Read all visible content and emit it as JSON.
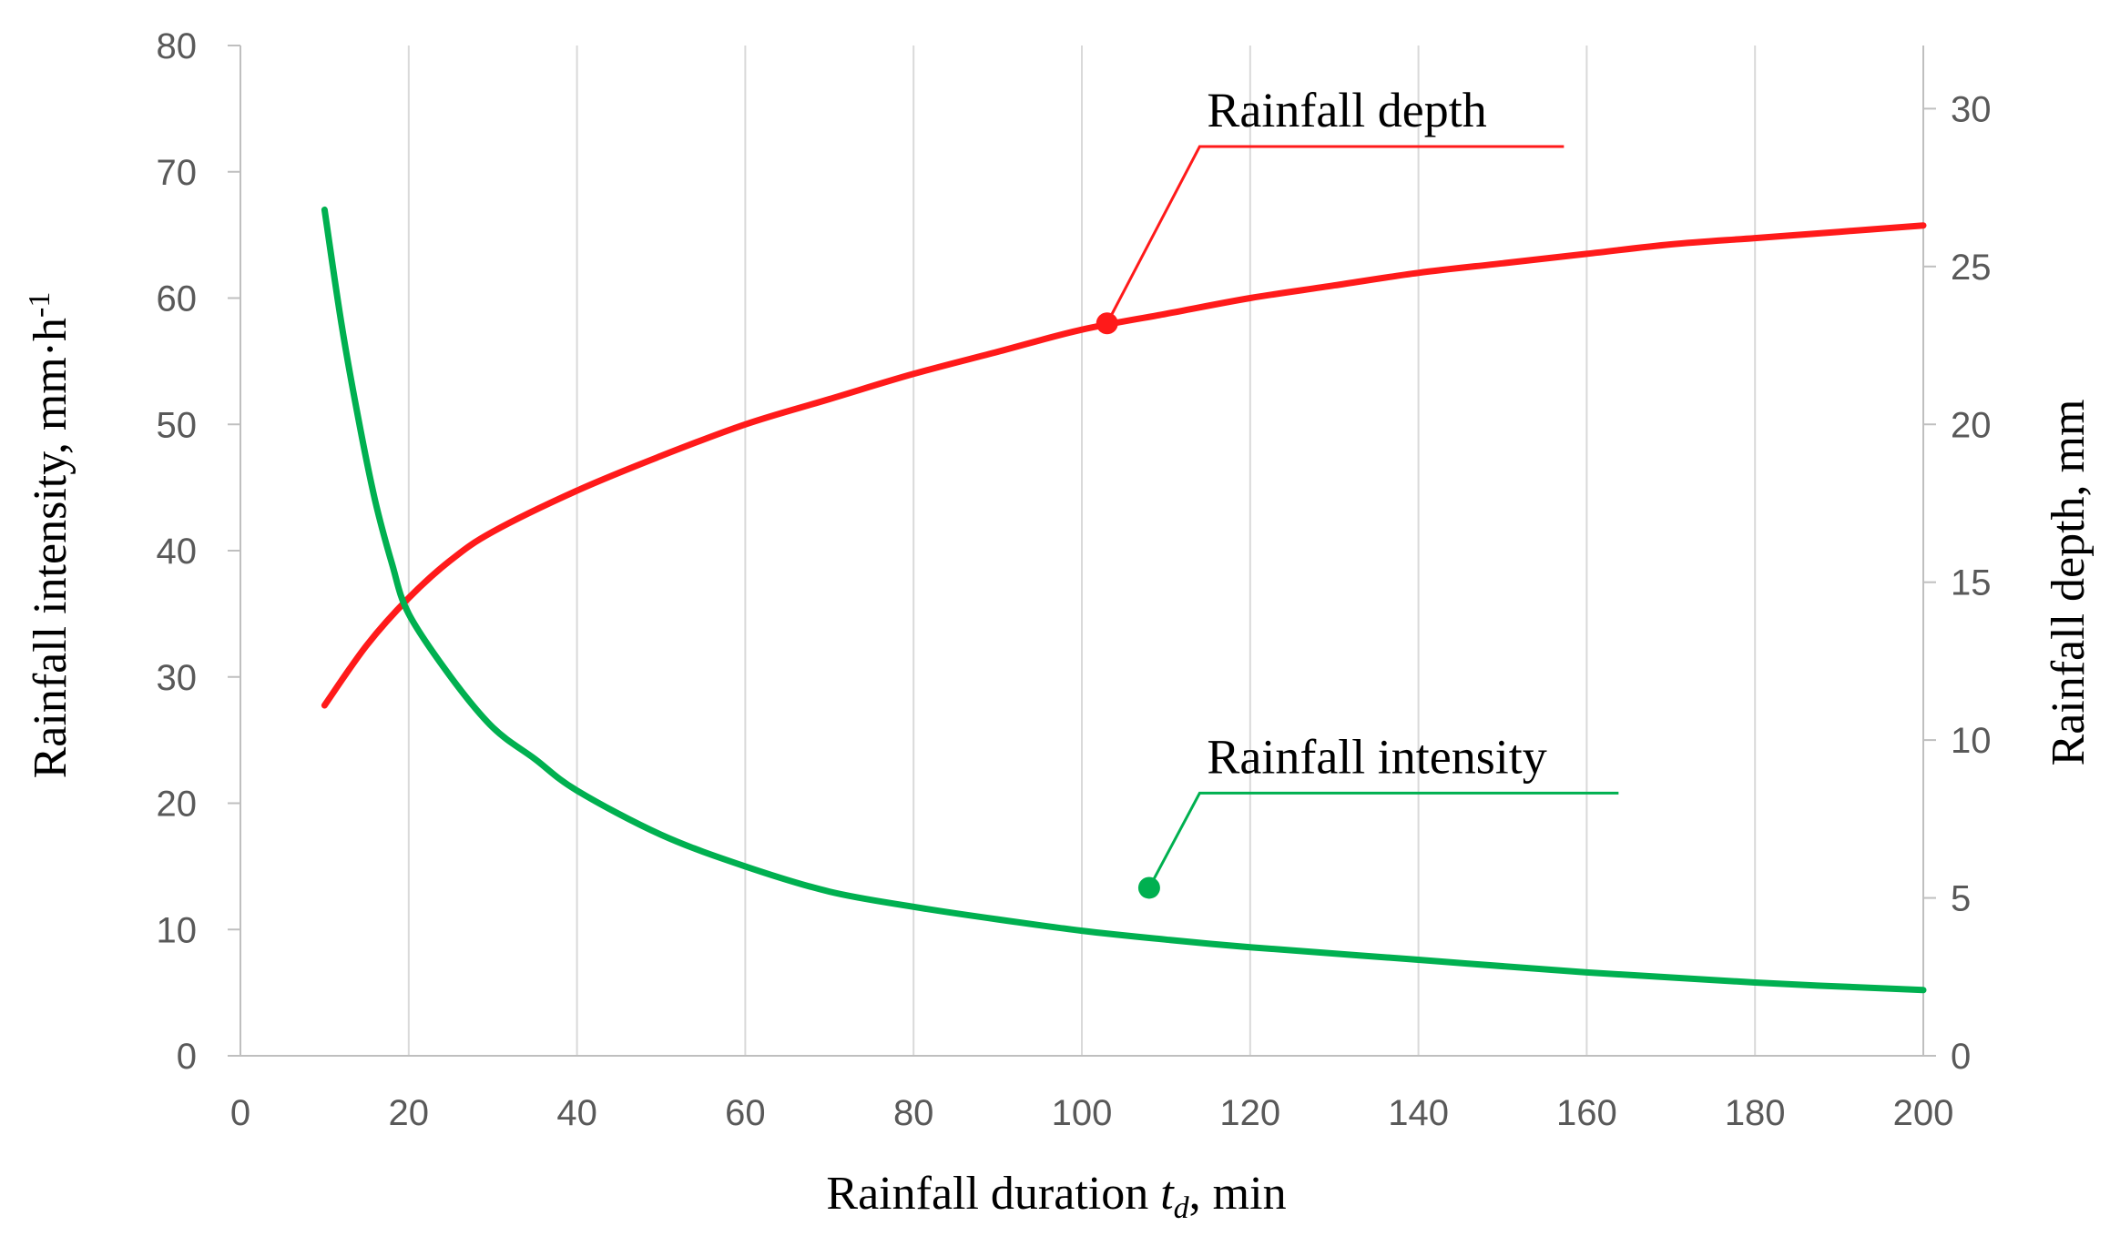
{
  "chart_data": {
    "type": "line",
    "x_axis": {
      "title_parts": [
        "Rainfall duration ",
        "t",
        "d",
        ", min"
      ],
      "range": [
        0,
        200
      ],
      "ticks": [
        "0",
        "20",
        "40",
        "60",
        "80",
        "100",
        "120",
        "140",
        "160",
        "180",
        "200"
      ],
      "grid": true
    },
    "y_left": {
      "title_parts": [
        "Rainfall intensity, mm·h",
        "-1"
      ],
      "range": [
        0,
        80
      ],
      "ticks": [
        "0",
        "10",
        "20",
        "30",
        "40",
        "50",
        "60",
        "70",
        "80"
      ]
    },
    "y_right": {
      "title": "Rainfall depth, mm",
      "range": [
        0,
        32
      ],
      "ticks": [
        "0",
        "5",
        "10",
        "15",
        "20",
        "25",
        "30"
      ]
    },
    "series": [
      {
        "name": "Rainfall depth",
        "axis": "right",
        "color": "#ff1a1a",
        "x": [
          10,
          15,
          20,
          25,
          30,
          40,
          50,
          60,
          70,
          80,
          90,
          100,
          110,
          120,
          130,
          140,
          150,
          160,
          170,
          180,
          190,
          200
        ],
        "y": [
          11.1,
          13.0,
          14.5,
          15.7,
          16.6,
          17.9,
          19.0,
          20.0,
          20.8,
          21.6,
          22.3,
          23.0,
          23.5,
          24.0,
          24.4,
          24.8,
          25.1,
          25.4,
          25.7,
          25.9,
          26.1,
          26.3
        ],
        "marker": {
          "x": 103,
          "y": 23.2
        },
        "label_anchor": {
          "x": 114,
          "y": 28.8
        }
      },
      {
        "name": "Rainfall intensity",
        "axis": "left",
        "color": "#00b050",
        "x": [
          10,
          12,
          14,
          16,
          18,
          20,
          25,
          30,
          35,
          40,
          50,
          60,
          70,
          80,
          90,
          100,
          110,
          120,
          140,
          160,
          180,
          200
        ],
        "y": [
          67.0,
          58.0,
          50.5,
          44.0,
          39.0,
          35.0,
          30.0,
          26.0,
          23.5,
          21.0,
          17.5,
          15.0,
          13.0,
          11.8,
          10.8,
          9.9,
          9.2,
          8.6,
          7.6,
          6.6,
          5.8,
          5.2
        ],
        "marker": {
          "x": 108,
          "y": 13.3
        },
        "label_anchor": {
          "x": 114,
          "y": 20.8
        }
      }
    ]
  },
  "labels": {
    "depth_callout": "Rainfall depth",
    "intensity_callout": "Rainfall intensity"
  }
}
